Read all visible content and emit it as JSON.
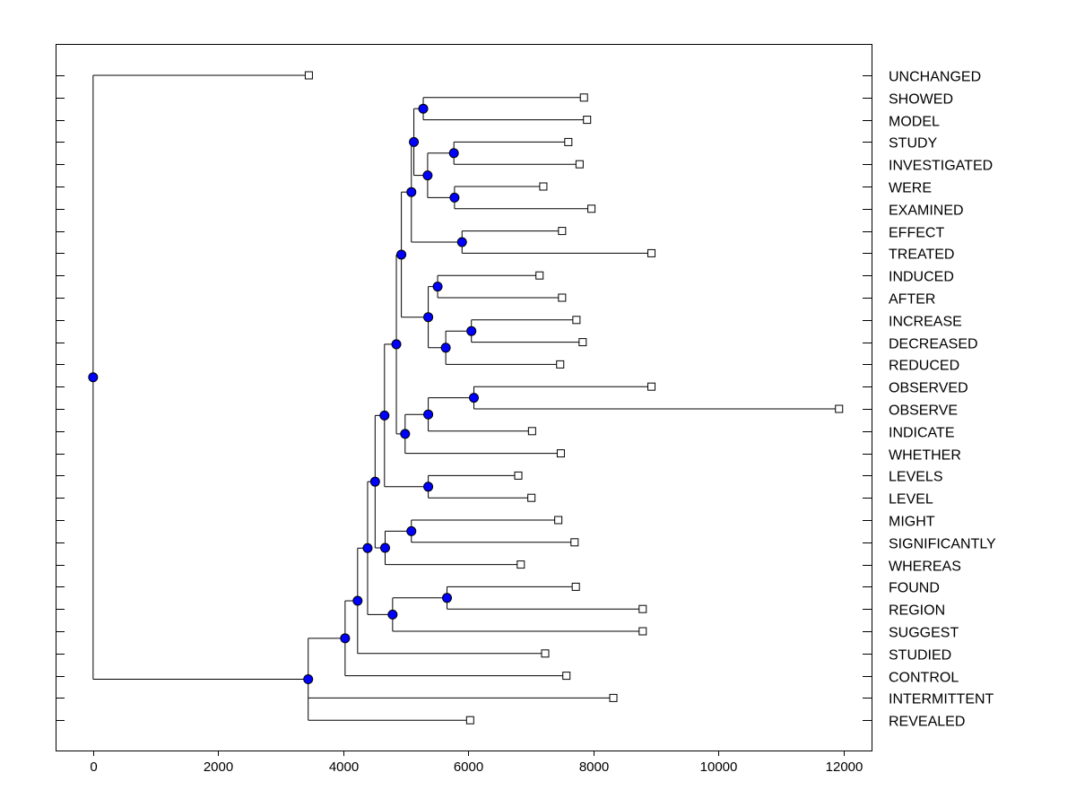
{
  "chart_data": {
    "type": "dendrogram",
    "orientation": "horizontal",
    "title": "",
    "xlabel": "",
    "ylabel": "",
    "xlim": [
      -600,
      12450
    ],
    "x_ticks": [
      0,
      2000,
      4000,
      6000,
      8000,
      10000,
      12000
    ],
    "x_tick_labels": [
      "0",
      "2000",
      "4000",
      "6000",
      "8000",
      "10000",
      "12000"
    ],
    "grid": false,
    "leaf_labels_side": "right",
    "leaves": [
      {
        "label": "UNCHANGED",
        "value": 3450
      },
      {
        "label": "SHOWED",
        "value": 7850
      },
      {
        "label": "MODEL",
        "value": 7900
      },
      {
        "label": "STUDY",
        "value": 7600
      },
      {
        "label": "INVESTIGATED",
        "value": 7780
      },
      {
        "label": "WERE",
        "value": 7200
      },
      {
        "label": "EXAMINED",
        "value": 7970
      },
      {
        "label": "EFFECT",
        "value": 7500
      },
      {
        "label": "TREATED",
        "value": 8930
      },
      {
        "label": "INDUCED",
        "value": 7140
      },
      {
        "label": "AFTER",
        "value": 7500
      },
      {
        "label": "INCREASE",
        "value": 7730
      },
      {
        "label": "DECREASED",
        "value": 7830
      },
      {
        "label": "REDUCED",
        "value": 7470
      },
      {
        "label": "OBSERVED",
        "value": 8930
      },
      {
        "label": "OBSERVE",
        "value": 11930
      },
      {
        "label": "INDICATE",
        "value": 7020
      },
      {
        "label": "WHETHER",
        "value": 7480
      },
      {
        "label": "LEVELS",
        "value": 6800
      },
      {
        "label": "LEVEL",
        "value": 7010
      },
      {
        "label": "MIGHT",
        "value": 7440
      },
      {
        "label": "SIGNIFICANTLY",
        "value": 7700
      },
      {
        "label": "WHEREAS",
        "value": 6840
      },
      {
        "label": "FOUND",
        "value": 7720
      },
      {
        "label": "REGION",
        "value": 8790
      },
      {
        "label": "SUGGEST",
        "value": 8790
      },
      {
        "label": "STUDIED",
        "value": 7230
      },
      {
        "label": "CONTROL",
        "value": 7570
      },
      {
        "label": "INTERMITTENT",
        "value": 8320
      },
      {
        "label": "REVEALED",
        "value": 6030
      }
    ],
    "merges": [
      {
        "id": "m01",
        "value": 5280,
        "children": [
          1,
          2
        ]
      },
      {
        "id": "m02",
        "value": 5770,
        "children": [
          3,
          4
        ]
      },
      {
        "id": "m03",
        "value": 5780,
        "children": [
          5,
          6
        ]
      },
      {
        "id": "m04",
        "value": 5350,
        "children": [
          "m02",
          "m03"
        ]
      },
      {
        "id": "m05",
        "value": 5130,
        "children": [
          "m01",
          "m04"
        ]
      },
      {
        "id": "m06",
        "value": 5900,
        "children": [
          7,
          8
        ]
      },
      {
        "id": "m07",
        "value": 5090,
        "children": [
          "m05",
          "m06"
        ]
      },
      {
        "id": "m08",
        "value": 5510,
        "children": [
          9,
          10
        ]
      },
      {
        "id": "m09",
        "value": 6050,
        "children": [
          11,
          12
        ]
      },
      {
        "id": "m10",
        "value": 5640,
        "children": [
          "m09",
          13
        ]
      },
      {
        "id": "m11",
        "value": 5360,
        "children": [
          "m08",
          "m10"
        ]
      },
      {
        "id": "m12",
        "value": 4930,
        "children": [
          "m07",
          "m11"
        ]
      },
      {
        "id": "m13",
        "value": 6090,
        "children": [
          14,
          15
        ]
      },
      {
        "id": "m14",
        "value": 5360,
        "children": [
          "m13",
          16
        ]
      },
      {
        "id": "m15",
        "value": 4990,
        "children": [
          "m14",
          17
        ]
      },
      {
        "id": "m16",
        "value": 4850,
        "children": [
          "m12",
          "m15"
        ]
      },
      {
        "id": "m17",
        "value": 5360,
        "children": [
          18,
          19
        ]
      },
      {
        "id": "m18",
        "value": 4660,
        "children": [
          "m16",
          "m17"
        ]
      },
      {
        "id": "m19",
        "value": 5090,
        "children": [
          20,
          21
        ]
      },
      {
        "id": "m20",
        "value": 4670,
        "children": [
          "m19",
          22
        ]
      },
      {
        "id": "m21",
        "value": 4510,
        "children": [
          "m18",
          "m20"
        ]
      },
      {
        "id": "m22",
        "value": 5660,
        "children": [
          23,
          24
        ]
      },
      {
        "id": "m23",
        "value": 4790,
        "children": [
          "m22",
          25
        ]
      },
      {
        "id": "m24",
        "value": 4390,
        "children": [
          "m21",
          "m23"
        ]
      },
      {
        "id": "m25",
        "value": 4230,
        "children": [
          "m24",
          26
        ]
      },
      {
        "id": "m26",
        "value": 4030,
        "children": [
          "m25",
          27
        ]
      },
      {
        "id": "m27",
        "value": 3440,
        "children": [
          "m26",
          28,
          29
        ]
      },
      {
        "id": "m28",
        "value": 0,
        "children": [
          0,
          "m27"
        ]
      }
    ],
    "colors": {
      "node_fill": "#0000ff",
      "leaf_fill": "#ffffff",
      "line": "#000000"
    }
  }
}
